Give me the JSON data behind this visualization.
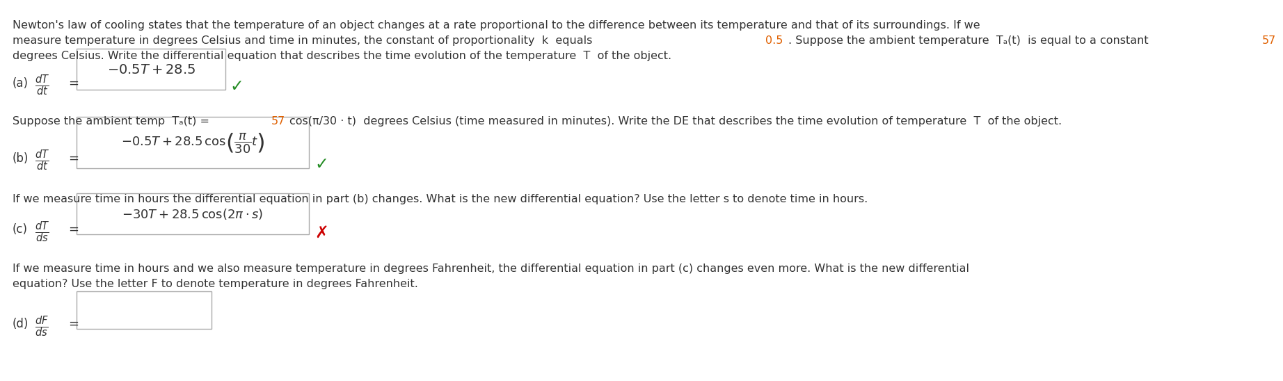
{
  "bg_color": "#ffffff",
  "text_color": "#333333",
  "highlight_color": "#cc0000",
  "highlight_orange": "#e06000",
  "green_color": "#228B22",
  "font_size_body": 11.5,
  "font_size_math": 13,
  "font_size_label": 12,
  "intro_line1": "Newton's law of cooling states that the temperature of an object changes at a rate proportional to the difference between its temperature and that of its surroundings. If we",
  "intro_line2_pre": "measure temperature in degrees Celsius and time in minutes, the constant of proportionality  k  equals ",
  "intro_line2_05": "0.5",
  "intro_line2_mid": ". Suppose the ambient temperature  Tₐ(t)  is equal to a constant  ",
  "intro_line2_57": "57",
  "intro_line3": "degrees Celsius. Write the differential equation that describes the time evolution of the temperature  T  of the object.",
  "part_b_pre": "Suppose the ambient temp  Tₐ(t) = ",
  "part_b_57": "57",
  "part_b_post": "cos(π/30 · t)  degrees Celsius (time measured in minutes). Write the DE that describes the time evolution of temperature  T  of the object.",
  "part_c_text": "If we measure time in hours the differential equation in part (b) changes. What is the new differential equation? Use the letter s to denote time in hours.",
  "part_d_line1": "If we measure time in hours and we also measure temperature in degrees Fahrenheit, the differential equation in part (c) changes even more. What is the new differential",
  "part_d_line2": "equation? Use the letter F to denote temperature in degrees Fahrenheit."
}
